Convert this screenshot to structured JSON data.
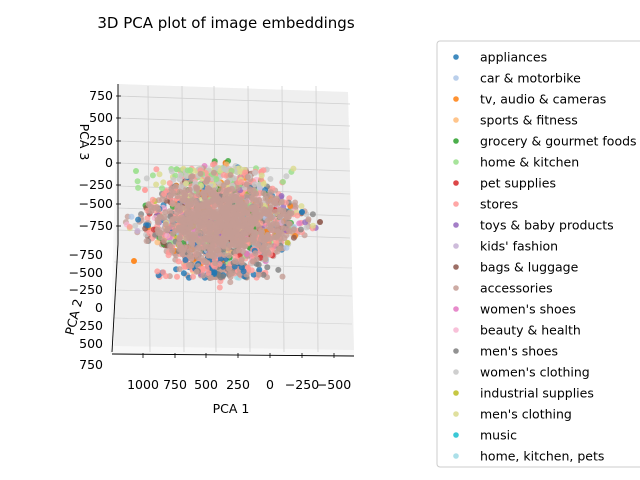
{
  "chart_data": {
    "type": "scatter",
    "projection": "3d",
    "title": "3D PCA plot of image embeddings",
    "xlabel": "PCA 1",
    "ylabel": "PCA 2",
    "zlabel": "PCA 3",
    "x_ticks": [
      "1000",
      "750",
      "500",
      "250",
      "0",
      "−250",
      "−500"
    ],
    "y_ticks": [
      "−750",
      "−500",
      "−250",
      "0",
      "250",
      "500",
      "750"
    ],
    "z_ticks": [
      "750",
      "500",
      "250",
      "0",
      "−250",
      "−500",
      "−750"
    ],
    "legend_position": "right, outside plot",
    "grid": true,
    "series": [
      {
        "name": "appliances",
        "color": "#1f77b4"
      },
      {
        "name": "car & motorbike",
        "color": "#aec7e8"
      },
      {
        "name": "tv, audio & cameras",
        "color": "#ff7f0e"
      },
      {
        "name": "sports & fitness",
        "color": "#ffbb78"
      },
      {
        "name": "grocery & gourmet foods",
        "color": "#2ca02c"
      },
      {
        "name": "home & kitchen",
        "color": "#98df8a"
      },
      {
        "name": "pet supplies",
        "color": "#d62728"
      },
      {
        "name": "stores",
        "color": "#ff9896"
      },
      {
        "name": "toys & baby products",
        "color": "#9467bd"
      },
      {
        "name": "kids' fashion",
        "color": "#c5b0d5"
      },
      {
        "name": "bags & luggage",
        "color": "#8c564b"
      },
      {
        "name": "accessories",
        "color": "#c49c94"
      },
      {
        "name": "women's shoes",
        "color": "#e377c2"
      },
      {
        "name": "beauty & health",
        "color": "#f7b6d2"
      },
      {
        "name": "men's shoes",
        "color": "#7f7f7f"
      },
      {
        "name": "women's clothing",
        "color": "#c7c7c7"
      },
      {
        "name": "industrial supplies",
        "color": "#bcbd22"
      },
      {
        "name": "men's clothing",
        "color": "#dbdb8d"
      },
      {
        "name": "music",
        "color": "#17becf"
      },
      {
        "name": "home, kitchen, pets",
        "color": "#9edae5"
      }
    ]
  }
}
